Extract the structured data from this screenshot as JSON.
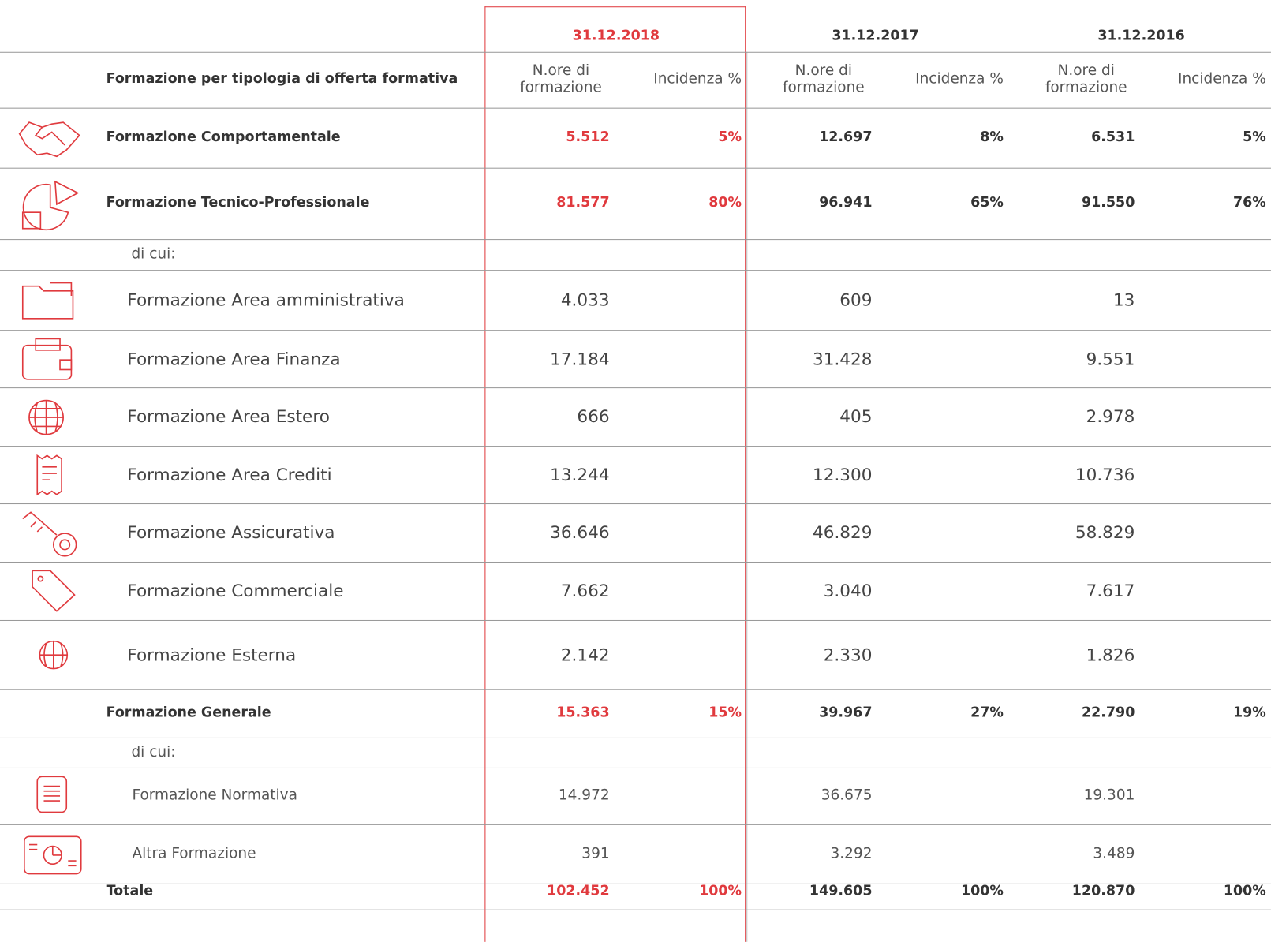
{
  "header": {
    "years": [
      "31.12.2018",
      "31.12.2017",
      "31.12.2016"
    ],
    "row_title": "Formazione per tipologia di offerta formativa",
    "hours_label": "N.ore di formazione",
    "share_label": "Incidenza %"
  },
  "table": {
    "rows": [
      {
        "label": "Formazione Comportamentale",
        "hours": [
          "5.512",
          "12.697",
          "6.531"
        ],
        "shares": [
          "5%",
          "8%",
          "5%"
        ]
      },
      {
        "label": "Formazione Tecnico-Professionale",
        "hours": [
          "81.577",
          "96.941",
          "91.550"
        ],
        "shares": [
          "80%",
          "65%",
          "76%"
        ]
      },
      {
        "label": "di cui:"
      },
      {
        "label": "Formazione Area amministrativa",
        "hours": [
          "4.033",
          "609",
          "13"
        ]
      },
      {
        "label": "Formazione Area Finanza",
        "hours": [
          "17.184",
          "31.428",
          "9.551"
        ]
      },
      {
        "label": "Formazione Area Estero",
        "hours": [
          "666",
          "405",
          "2.978"
        ]
      },
      {
        "label": "Formazione Area Crediti",
        "hours": [
          "13.244",
          "12.300",
          "10.736"
        ]
      },
      {
        "label": "Formazione Assicurativa",
        "hours": [
          "36.646",
          "46.829",
          "58.829"
        ]
      },
      {
        "label": "Formazione Commerciale",
        "hours": [
          "7.662",
          "3.040",
          "7.617"
        ]
      },
      {
        "label": "Formazione Esterna",
        "hours": [
          "2.142",
          "2.330",
          "1.826"
        ]
      },
      {
        "label": "Formazione Generale",
        "hours": [
          "15.363",
          "39.967",
          "22.790"
        ],
        "shares": [
          "15%",
          "27%",
          "19%"
        ]
      },
      {
        "label": "di cui:"
      },
      {
        "label": "Formazione Normativa",
        "hours": [
          "14.972",
          "36.675",
          "19.301"
        ]
      },
      {
        "label": "Altra Formazione",
        "hours": [
          "391",
          "3.292",
          "3.489"
        ]
      },
      {
        "label": "Totale",
        "hours": [
          "102.452",
          "149.605",
          "120.870"
        ],
        "shares": [
          "100%",
          "100%",
          "100%"
        ]
      }
    ]
  }
}
